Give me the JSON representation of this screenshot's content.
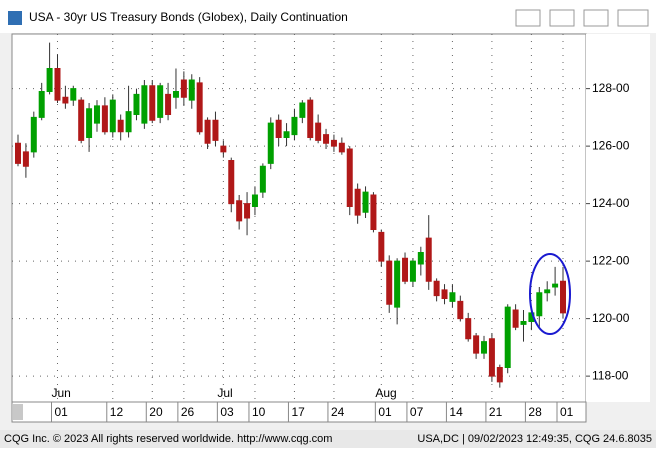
{
  "window": {
    "title": "USA - 30yr US Treasury Bonds (Globex), Daily Continuation"
  },
  "footer": {
    "left": "CQG Inc. © 2023 All rights reserved worldwide. http://www.cqg.com",
    "right": "USA,DC | 09/02/2023 12:49:35, CQG 24.6.8035"
  },
  "chart_data": {
    "type": "candlestick",
    "categories": [
      null,
      null,
      null,
      null,
      null,
      "01",
      null,
      null,
      null,
      null,
      null,
      null,
      "12",
      null,
      null,
      null,
      null,
      "20",
      null,
      null,
      null,
      "26",
      null,
      null,
      null,
      null,
      "03",
      null,
      null,
      null,
      "10",
      null,
      null,
      null,
      null,
      "17",
      null,
      null,
      null,
      null,
      "24",
      null,
      null,
      null,
      null,
      null,
      "01",
      null,
      null,
      null,
      "07",
      null,
      null,
      null,
      null,
      "14",
      null,
      null,
      null,
      null,
      "21",
      null,
      null,
      null,
      null,
      "28",
      null,
      null,
      null,
      "01"
    ],
    "months": [
      null,
      null,
      null,
      null,
      null,
      "Jun",
      null,
      null,
      null,
      null,
      null,
      null,
      null,
      null,
      null,
      null,
      null,
      null,
      null,
      null,
      null,
      null,
      null,
      null,
      null,
      null,
      "Jul",
      null,
      null,
      null,
      null,
      null,
      null,
      null,
      null,
      null,
      null,
      null,
      null,
      null,
      null,
      null,
      null,
      null,
      null,
      null,
      "Aug",
      null,
      null,
      null,
      null,
      null,
      null,
      null,
      null,
      null,
      null,
      null,
      null,
      null,
      null,
      null,
      null,
      null,
      null,
      null,
      null,
      null,
      null,
      null
    ],
    "open": [
      126.1,
      125.8,
      125.8,
      127.0,
      127.9,
      128.7,
      127.7,
      127.6,
      127.6,
      126.3,
      126.8,
      127.4,
      126.5,
      126.9,
      126.5,
      127.1,
      126.8,
      128.1,
      127.0,
      127.8,
      127.7,
      128.3,
      127.6,
      128.2,
      126.9,
      126.9,
      126.0,
      125.5,
      124.1,
      124.0,
      123.9,
      124.4,
      125.4,
      126.9,
      126.3,
      126.4,
      127.0,
      127.6,
      126.8,
      126.4,
      126.2,
      126.1,
      125.9,
      124.5,
      123.7,
      124.3,
      123.0,
      122.0,
      120.4,
      122.1,
      121.3,
      121.9,
      122.8,
      121.3,
      121.0,
      120.6,
      120.6,
      120.0,
      119.4,
      118.8,
      119.3,
      118.3,
      118.3,
      120.3,
      119.8,
      119.9,
      120.1,
      120.9,
      121.1,
      121.3
    ],
    "high": [
      126.4,
      126.1,
      127.2,
      128.2,
      129.6,
      129.2,
      128.1,
      128.1,
      127.7,
      127.5,
      127.6,
      127.7,
      127.8,
      127.1,
      128.1,
      128.0,
      128.3,
      128.3,
      128.2,
      128.2,
      128.7,
      128.6,
      128.5,
      128.4,
      127.0,
      127.2,
      126.2,
      125.6,
      124.3,
      124.4,
      124.6,
      125.4,
      127.0,
      127.1,
      126.8,
      127.3,
      127.6,
      127.7,
      127.1,
      126.6,
      126.4,
      126.3,
      126.0,
      124.7,
      124.6,
      124.4,
      123.1,
      122.2,
      122.1,
      122.3,
      122.1,
      122.5,
      123.6,
      121.4,
      121.2,
      121.2,
      120.8,
      120.2,
      119.5,
      119.4,
      119.5,
      118.4,
      120.5,
      120.5,
      120.3,
      120.3,
      121.1,
      121.3,
      121.8,
      121.8
    ],
    "low": [
      125.3,
      124.9,
      125.6,
      126.9,
      127.8,
      127.5,
      127.3,
      127.4,
      126.1,
      125.8,
      126.5,
      126.4,
      126.3,
      126.2,
      126.3,
      126.9,
      126.6,
      126.8,
      126.8,
      126.9,
      127.3,
      127.4,
      127.3,
      126.4,
      125.9,
      126.0,
      125.6,
      123.7,
      123.1,
      122.9,
      123.6,
      124.2,
      125.2,
      126.0,
      126.0,
      126.2,
      126.8,
      126.2,
      126.1,
      125.9,
      125.8,
      125.7,
      123.6,
      123.3,
      123.5,
      123.0,
      121.8,
      120.2,
      119.8,
      121.2,
      121.1,
      121.5,
      121.0,
      120.6,
      120.5,
      120.4,
      119.9,
      119.2,
      118.6,
      118.6,
      117.8,
      117.6,
      118.1,
      119.6,
      119.2,
      119.6,
      119.7,
      120.6,
      120.8,
      120.0
    ],
    "close": [
      125.4,
      125.3,
      127.0,
      127.9,
      128.7,
      127.6,
      127.5,
      128.0,
      126.2,
      127.3,
      127.4,
      126.5,
      127.6,
      126.5,
      127.2,
      127.8,
      128.1,
      126.9,
      128.1,
      127.1,
      127.9,
      127.7,
      128.3,
      126.5,
      126.1,
      126.2,
      125.8,
      124.0,
      123.4,
      123.5,
      124.3,
      125.3,
      126.8,
      126.3,
      126.5,
      127.0,
      127.5,
      126.3,
      126.2,
      126.1,
      126.0,
      125.8,
      123.9,
      123.6,
      124.4,
      123.1,
      122.0,
      120.5,
      122.0,
      121.3,
      122.0,
      122.3,
      121.3,
      120.8,
      120.7,
      120.9,
      120.0,
      119.3,
      118.8,
      119.2,
      118.0,
      117.8,
      120.4,
      119.7,
      119.9,
      120.2,
      120.9,
      121.0,
      121.2,
      120.2
    ],
    "up_color": "#00a000",
    "down_color": "#b01818",
    "ylim": [
      117.1,
      129.9
    ],
    "yticks": [
      {
        "value": 118,
        "label": "118-00"
      },
      {
        "value": 120,
        "label": "120-00"
      },
      {
        "value": 122,
        "label": "122-00"
      },
      {
        "value": 124,
        "label": "124-00"
      },
      {
        "value": 126,
        "label": "126-00"
      },
      {
        "value": 128,
        "label": "128-00"
      }
    ],
    "grid": true
  }
}
